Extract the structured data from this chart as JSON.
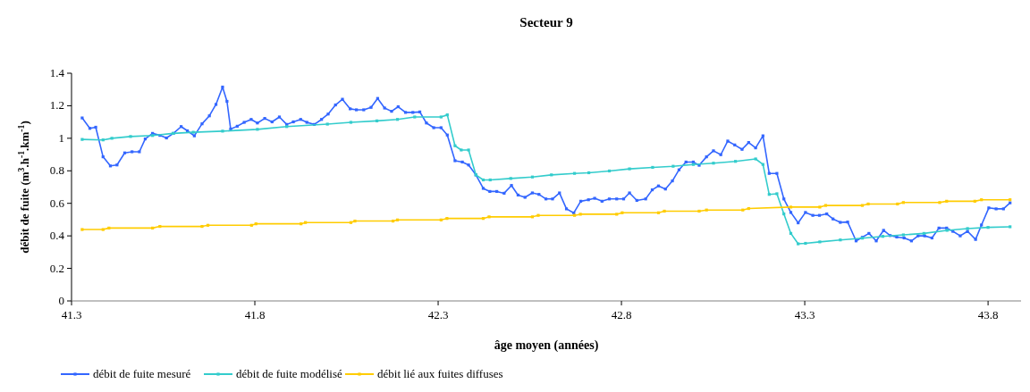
{
  "chart_data": {
    "type": "line",
    "title": "Secteur 9",
    "xlabel": "âge moyen (années)",
    "ylabel": "débit de fuite (m$^{3}$.h$^{-1}$.km$^{-1}$)",
    "xlim": [
      41.3,
      43.89
    ],
    "xticks": [
      41.3,
      41.8,
      42.3,
      42.8,
      43.3,
      43.8
    ],
    "ylim": [
      0,
      1.4
    ],
    "yticks": [
      0,
      0.2,
      0.4,
      0.6,
      0.8,
      1,
      1.2,
      1.4
    ],
    "grid": false,
    "legend": "bottom",
    "marker": "square",
    "line_style": "solid",
    "series": [
      {
        "name": "débit de fuite mesuré",
        "color": "#3366ff",
        "x": [
          41.329,
          41.35,
          41.366,
          41.386,
          41.406,
          41.424,
          41.445,
          41.465,
          41.485,
          41.501,
          41.521,
          41.541,
          41.559,
          41.578,
          41.599,
          41.616,
          41.635,
          41.656,
          41.676,
          41.694,
          41.712,
          41.724,
          41.734,
          41.752,
          41.771,
          41.79,
          41.807,
          41.827,
          41.847,
          41.867,
          41.887,
          41.905,
          41.925,
          41.942,
          41.962,
          41.982,
          42.0,
          42.02,
          42.039,
          42.06,
          42.077,
          42.097,
          42.117,
          42.135,
          42.154,
          42.173,
          42.191,
          42.211,
          42.231,
          42.25,
          42.268,
          42.288,
          42.308,
          42.325,
          42.346,
          42.366,
          42.383,
          42.403,
          42.423,
          42.441,
          42.46,
          42.48,
          42.5,
          42.518,
          42.537,
          42.557,
          42.575,
          42.594,
          42.612,
          42.631,
          42.65,
          42.67,
          42.689,
          42.71,
          42.727,
          42.747,
          42.767,
          42.787,
          42.806,
          42.822,
          42.842,
          42.866,
          42.884,
          42.901,
          42.92,
          42.939,
          42.957,
          42.976,
          42.996,
          43.012,
          43.032,
          43.051,
          43.071,
          43.09,
          43.109,
          43.129,
          43.147,
          43.166,
          43.186,
          43.203,
          43.224,
          43.243,
          43.262,
          43.282,
          43.302,
          43.322,
          43.34,
          43.36,
          43.377,
          43.397,
          43.417,
          43.44,
          43.457,
          43.475,
          43.495,
          43.515,
          43.533,
          43.551,
          43.571,
          43.591,
          43.609,
          43.627,
          43.647,
          43.666,
          43.687,
          43.704,
          43.724,
          43.744,
          43.766,
          43.782,
          43.802,
          43.822,
          43.842,
          43.86
        ],
        "values": [
          1.125,
          1.061,
          1.068,
          0.886,
          0.83,
          0.836,
          0.91,
          0.917,
          0.917,
          0.996,
          1.03,
          1.018,
          1.002,
          1.03,
          1.072,
          1.046,
          1.015,
          1.089,
          1.138,
          1.208,
          1.315,
          1.227,
          1.057,
          1.074,
          1.098,
          1.116,
          1.094,
          1.122,
          1.101,
          1.131,
          1.085,
          1.101,
          1.116,
          1.098,
          1.085,
          1.116,
          1.149,
          1.205,
          1.24,
          1.181,
          1.175,
          1.175,
          1.19,
          1.245,
          1.186,
          1.166,
          1.194,
          1.159,
          1.159,
          1.162,
          1.094,
          1.065,
          1.065,
          1.02,
          0.862,
          0.854,
          0.836,
          0.775,
          0.692,
          0.673,
          0.673,
          0.662,
          0.71,
          0.651,
          0.637,
          0.664,
          0.655,
          0.627,
          0.627,
          0.664,
          0.566,
          0.541,
          0.613,
          0.622,
          0.631,
          0.613,
          0.627,
          0.627,
          0.627,
          0.664,
          0.618,
          0.627,
          0.683,
          0.707,
          0.688,
          0.738,
          0.806,
          0.854,
          0.854,
          0.834,
          0.886,
          0.923,
          0.899,
          0.983,
          0.959,
          0.932,
          0.974,
          0.941,
          1.015,
          0.784,
          0.784,
          0.627,
          0.544,
          0.48,
          0.544,
          0.526,
          0.526,
          0.535,
          0.504,
          0.483,
          0.485,
          0.369,
          0.391,
          0.415,
          0.369,
          0.434,
          0.402,
          0.393,
          0.387,
          0.369,
          0.4,
          0.4,
          0.387,
          0.448,
          0.448,
          0.428,
          0.4,
          0.428,
          0.378,
          0.467,
          0.572,
          0.566,
          0.566,
          0.603
        ]
      },
      {
        "name": "débit de fuite modélisé",
        "color": "#33cccc",
        "x": [
          41.329,
          41.386,
          41.41,
          41.461,
          41.521,
          41.577,
          41.632,
          41.712,
          41.807,
          41.887,
          41.998,
          42.062,
          42.133,
          42.189,
          42.236,
          42.308,
          42.325,
          42.346,
          42.363,
          42.383,
          42.403,
          42.423,
          42.442,
          42.498,
          42.557,
          42.609,
          42.672,
          42.711,
          42.767,
          42.822,
          42.885,
          42.941,
          42.996,
          43.051,
          43.111,
          43.166,
          43.186,
          43.203,
          43.224,
          43.243,
          43.262,
          43.282,
          43.302,
          43.341,
          43.397,
          43.457,
          43.513,
          43.569,
          43.625,
          43.688,
          43.744,
          43.8,
          43.86
        ],
        "values": [
          0.993,
          0.99,
          1.0,
          1.011,
          1.017,
          1.03,
          1.037,
          1.044,
          1.055,
          1.072,
          1.087,
          1.098,
          1.107,
          1.116,
          1.131,
          1.131,
          1.144,
          0.954,
          0.928,
          0.928,
          0.775,
          0.744,
          0.744,
          0.753,
          0.762,
          0.775,
          0.784,
          0.788,
          0.799,
          0.812,
          0.821,
          0.828,
          0.839,
          0.847,
          0.858,
          0.873,
          0.839,
          0.655,
          0.659,
          0.535,
          0.415,
          0.351,
          0.354,
          0.363,
          0.375,
          0.386,
          0.397,
          0.406,
          0.415,
          0.434,
          0.445,
          0.452,
          0.456
        ]
      },
      {
        "name": "débit lié aux fuites diffuses",
        "color": "#ffcc00",
        "x": [
          41.329,
          41.386,
          41.402,
          41.521,
          41.541,
          41.656,
          41.672,
          41.791,
          41.803,
          41.926,
          41.938,
          42.062,
          42.073,
          42.177,
          42.189,
          42.308,
          42.324,
          42.423,
          42.439,
          42.557,
          42.573,
          42.672,
          42.688,
          42.787,
          42.802,
          42.901,
          42.917,
          43.012,
          43.032,
          43.131,
          43.147,
          43.262,
          43.341,
          43.357,
          43.457,
          43.473,
          43.553,
          43.569,
          43.668,
          43.687,
          43.764,
          43.782,
          43.86
        ],
        "values": [
          0.439,
          0.439,
          0.448,
          0.448,
          0.458,
          0.458,
          0.465,
          0.465,
          0.474,
          0.474,
          0.482,
          0.482,
          0.491,
          0.491,
          0.498,
          0.498,
          0.507,
          0.507,
          0.517,
          0.517,
          0.526,
          0.526,
          0.533,
          0.533,
          0.542,
          0.542,
          0.552,
          0.552,
          0.559,
          0.559,
          0.568,
          0.577,
          0.577,
          0.587,
          0.587,
          0.596,
          0.596,
          0.605,
          0.605,
          0.613,
          0.613,
          0.622,
          0.622
        ]
      }
    ]
  }
}
